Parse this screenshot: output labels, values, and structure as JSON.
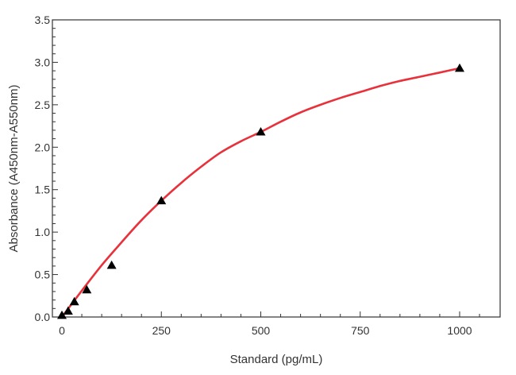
{
  "chart_data": {
    "type": "scatter",
    "title": "",
    "xlabel": "Standard (pg/mL)",
    "ylabel": "Absorbance (A450nm-A550nm)",
    "xlim": [
      0,
      1100
    ],
    "ylim": [
      0,
      3.5
    ],
    "x_ticks": [
      0,
      250,
      500,
      750,
      1000
    ],
    "x_tick_labels": [
      "0",
      "250",
      "500",
      "750",
      "1000"
    ],
    "y_ticks": [
      0,
      0.5,
      1.0,
      1.5,
      2.0,
      2.5,
      3.0,
      3.5
    ],
    "y_tick_labels": [
      "0.0",
      "0.5",
      "1.0",
      "1.5",
      "2.0",
      "2.5",
      "3.0",
      "3.5"
    ],
    "grid": false,
    "legend": "none",
    "series": [
      {
        "marker": "triangle",
        "color": "#000000",
        "x": [
          0,
          15.6,
          31.25,
          62.5,
          125,
          250,
          500,
          1000
        ],
        "y": [
          0.02,
          0.07,
          0.18,
          0.32,
          0.61,
          1.37,
          2.18,
          2.93
        ]
      }
    ],
    "fit_curve": {
      "color": "#e8313a",
      "x": [
        0,
        50,
        100,
        150,
        200,
        250,
        300,
        350,
        400,
        450,
        500,
        550,
        600,
        650,
        700,
        750,
        800,
        850,
        900,
        950,
        1000
      ],
      "y": [
        0.0,
        0.31,
        0.61,
        0.88,
        1.14,
        1.37,
        1.58,
        1.77,
        1.94,
        2.07,
        2.18,
        2.3,
        2.41,
        2.5,
        2.58,
        2.65,
        2.72,
        2.78,
        2.83,
        2.88,
        2.93
      ]
    }
  }
}
